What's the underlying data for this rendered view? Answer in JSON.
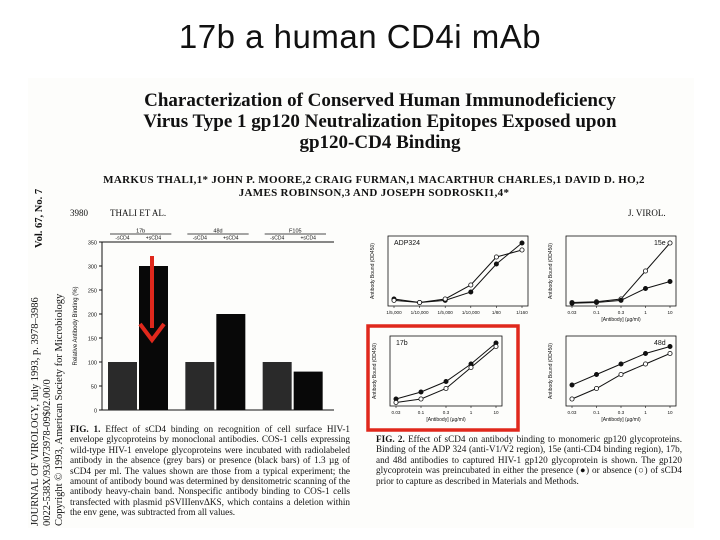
{
  "slide": {
    "title": "17b a human CD4i mAb"
  },
  "journal_side": {
    "line1": "JOURNAL OF VIROLOGY, July 1993, p. 3978–3986",
    "line2": "0022-538X/93/073978-09$02.00/0",
    "line3": "Copyright © 1993, American Society for Microbiology",
    "volume": "Vol. 67, No. 7"
  },
  "paper": {
    "title_lines": [
      "Characterization of Conserved Human Immunodeficiency",
      "Virus Type 1 gp120 Neutralization Epitopes Exposed upon",
      "gp120-CD4 Binding"
    ],
    "authors_line1": "MARKUS THALI,1* JOHN P. MOORE,2 CRAIG FURMAN,1 MACARTHUR CHARLES,1 DAVID D. HO,2",
    "authors_line2": "JAMES ROBINSON,3 AND JOSEPH SODROSKI1,4*",
    "page_number": "3980",
    "running_head": "THALI ET AL.",
    "journal_abbrev": "J. VIROL."
  },
  "fig1": {
    "caption_lead": "FIG. 1.",
    "caption_body": "Effect of sCD4 binding on recognition of cell surface HIV-1 envelope glycoproteins by monoclonal antibodies. COS-1 cells expressing wild-type HIV-1 envelope glycoproteins were incubated with radiolabeled antibody in the absence (grey bars) or presence (black bars) of 1.3 µg of sCD4 per ml. The values shown are those from a typical experiment; the amount of antibody bound was determined by densitometric scanning of the antibody heavy-chain band. Nonspecific antibody binding to COS-1 cells transfected with plasmid pSVIIIenvΔKS, which contains a deletion within the env gene, was subtracted from all values."
  },
  "fig2": {
    "caption_lead": "FIG. 2.",
    "caption_body": "Effect of sCD4 on antibody binding to monomeric gp120 glycoproteins. Binding of the ADP 324 (anti-V1/V2 region), 15e (anti-CD4 binding region), 17b, and 48d antibodies to captured HIV-1 gp120 glycoprotein is shown. The gp120 glycoprotein was preincubated in either the presence (●) or absence (○) of sCD4 prior to capture as described in Materials and Methods."
  },
  "chart_data": [
    {
      "type": "bar",
      "name": "fig1",
      "ylabel": "Relative Antibody Binding (%)",
      "yticks": [
        0,
        50,
        100,
        150,
        200,
        250,
        300,
        350
      ],
      "ylim": [
        0,
        350
      ],
      "group_headers": [
        "17b",
        "48d",
        "F105"
      ],
      "categories": [
        "-sCD4",
        "+sCD4",
        "-sCD4",
        "+sCD4",
        "-sCD4",
        "+sCD4"
      ],
      "values": [
        100,
        300,
        100,
        200,
        100,
        80
      ],
      "colors": [
        "#2a2a2a",
        "#080808",
        "#2a2a2a",
        "#080808",
        "#2a2a2a",
        "#080808"
      ]
    },
    {
      "type": "line",
      "name": "ADP324",
      "panel_label": "ADP324",
      "ylabel": "Antibody Bound (OD450)",
      "xticks": [
        "1/5,000",
        "1/10,000",
        "1/5,000",
        "1/10,000",
        "1/80",
        "1/160"
      ],
      "series": [
        {
          "marker": "filled",
          "values": [
            0.1,
            0.05,
            0.08,
            0.2,
            0.6,
            0.9
          ]
        },
        {
          "marker": "open",
          "values": [
            0.08,
            0.05,
            0.1,
            0.3,
            0.7,
            0.8
          ]
        }
      ]
    },
    {
      "type": "line",
      "name": "15e",
      "panel_label": "15e",
      "ylabel": "Antibody Bound (OD450)",
      "xlabel": "[Antibody] (µg/ml)",
      "xticks": [
        "0.03",
        "0.1",
        "0.3",
        "1",
        "10"
      ],
      "series": [
        {
          "marker": "open",
          "values": [
            0.05,
            0.06,
            0.1,
            0.5,
            0.9
          ]
        },
        {
          "marker": "filled",
          "values": [
            0.04,
            0.05,
            0.08,
            0.25,
            0.35
          ]
        }
      ]
    },
    {
      "type": "line",
      "name": "17b",
      "panel_label": "17b",
      "ylabel": "Antibody Bound (OD450)",
      "xlabel": "[Antibody] (µg/ml)",
      "xticks": [
        "0.03",
        "0.1",
        "0.3",
        "1",
        "10"
      ],
      "series": [
        {
          "marker": "filled",
          "values": [
            0.1,
            0.2,
            0.35,
            0.6,
            0.9
          ]
        },
        {
          "marker": "open",
          "values": [
            0.05,
            0.1,
            0.25,
            0.55,
            0.85
          ]
        }
      ]
    },
    {
      "type": "line",
      "name": "48d",
      "panel_label": "48d",
      "ylabel": "Antibody Bound (OD450)",
      "xlabel": "[Antibody] (µg/ml)",
      "xticks": [
        "0.03",
        "0.1",
        "0.3",
        "1",
        "10"
      ],
      "series": [
        {
          "marker": "filled",
          "values": [
            0.3,
            0.45,
            0.6,
            0.75,
            0.85
          ]
        },
        {
          "marker": "open",
          "values": [
            0.1,
            0.25,
            0.45,
            0.6,
            0.75
          ]
        }
      ]
    }
  ],
  "annotations": {
    "arrow_color": "#e0281c",
    "highlight_color": "#e0281c"
  }
}
